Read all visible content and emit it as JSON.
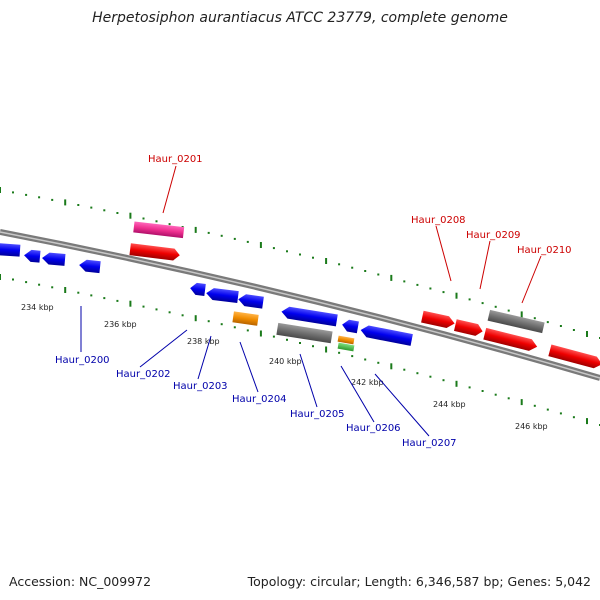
{
  "title": "Herpetosiphon aurantiacus ATCC 23779, complete genome",
  "accession_text": "Accession: NC_009972",
  "summary_text": "Topology: circular; Length: 6,346,587 bp; Genes: 5,042",
  "colors": {
    "forward_label": "#cc0000",
    "reverse_label": "#0000aa",
    "backbone": "#7a7a7a",
    "tick_forward": "#1a7a1a",
    "tick_reverse": "#1a7a1a"
  },
  "scale_labels": [
    "234 kbp",
    "236 kbp",
    "238 kbp",
    "240 kbp",
    "242 kbp",
    "244 kbp",
    "246 kbp"
  ],
  "gene_labels": {
    "forward": [
      "Haur_0201",
      "Haur_0208",
      "Haur_0209",
      "Haur_0210"
    ],
    "reverse": [
      "Haur_0200",
      "Haur_0202",
      "Haur_0203",
      "Haur_0204",
      "Haur_0205",
      "Haur_0206",
      "Haur_0207"
    ]
  }
}
